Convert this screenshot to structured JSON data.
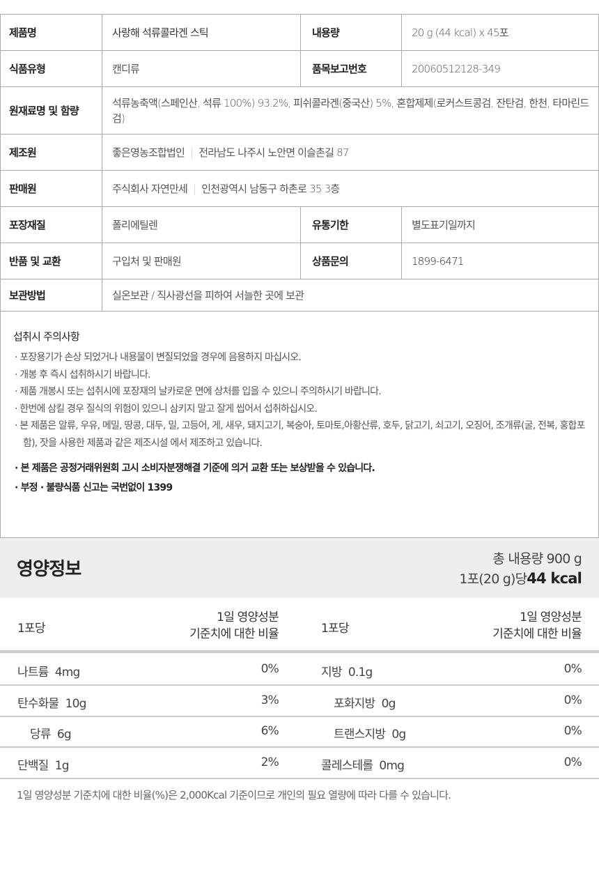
{
  "info": {
    "product_name_label": "제품명",
    "product_name": "사랑해 석류콜라겐 스틱",
    "volume_label": "내용량",
    "volume": "20 g (44 kcal) x 45포",
    "food_type_label": "식품유형",
    "food_type": "캔디류",
    "report_no_label": "품목보고번호",
    "report_no": "20060512128-349",
    "ingredients_label": "원재료명 및 함량",
    "ingredients": "석류농축액(스페인산, 석류 100%) 93.2%, 피쉬콜라겐(중국산) 5%, 혼합제제(로커스트콩검, 잔탄검, 한천, 타마린드검)",
    "maker_label": "제조원",
    "maker_name": "좋은영농조합법인",
    "maker_addr": "전라남도 나주시 노안면 이슬촌길 87",
    "seller_label": "판매원",
    "seller_name": "주식회사 자연만세",
    "seller_addr": "인천광역시 남동구 하촌로 35 3층",
    "packaging_label": "포장재질",
    "packaging": "폴리에틸렌",
    "expiry_label": "유통기한",
    "expiry": "별도표기일까지",
    "return_label": "반품 및 교환",
    "return": "구입처 및 판매원",
    "inquiry_label": "상품문의",
    "inquiry": "1899-6471",
    "storage_label": "보관방법",
    "storage": "실온보관 / 직사광선을 피하여 서늘한 곳에 보관",
    "separator": "|"
  },
  "caution": {
    "title": "섭취시 주의사항",
    "items": [
      "· 포장용기가 손상 되었거나 내용물이 변질되었을 경우에 음용하지 마십시오.",
      "· 개봉 후 즉시 섭취하시기 바랍니다.",
      "· 제품 개봉시 또는 섭취시에 포장재의 날카로운 면에 상처를 입을 수 있으니 주의하시기 바랍니다.",
      "· 한번에 삼킬 경우 질식의 위험이 있으니 삼키지 말고 잘게 씹어서 섭취하십시오.",
      "· 본 제품은 알류, 우유, 메밀, 땅콩, 대두, 밀, 고등어, 게, 새우, 돼지고기, 복숭아, 토마토,아황산류, 호두, 닭고기, 쇠고기, 오징어, 조개류(굴, 전복, 홍합포함), 잣을 사용한 제품과 같은 제조시설 에서 제조하고 있습니다."
    ],
    "notes": [
      "· 본 제품은 공정거래위원회 고시 소비자분쟁해결 기준에 의거 교환 또는 보상받을 수 있습니다.",
      "· 부정 · 불량식품 신고는 국번없이 1399"
    ]
  },
  "nutrition": {
    "title": "영양정보",
    "total": "총 내용량 900 g",
    "per_serving": "1포(20 g)당",
    "kcal": "44 kcal",
    "col_per": "1포당",
    "col_dv_1": "1일 영양성분",
    "col_dv_2": "기준치에 대한 비율",
    "left": [
      {
        "name": "나트륨  4mg",
        "dv": "0%"
      },
      {
        "name": "탄수화물  10g",
        "dv": "3%"
      },
      {
        "name": "당류  6g",
        "dv": "6%"
      },
      {
        "name": "단백질  1g",
        "dv": "2%"
      }
    ],
    "right": [
      {
        "name": "지방  0.1g",
        "dv": "0%"
      },
      {
        "name": "포화지방  0g",
        "dv": "0%"
      },
      {
        "name": "트랜스지방  0g",
        "dv": "0%"
      },
      {
        "name": "콜레스테롤  0mg",
        "dv": "0%"
      }
    ],
    "footnote": "1일 영양성분 기준치에 대한 비율(%)은 2,000Kcal 기준이므로 개인의 필요 열량에 따라 다를 수 있습니다."
  }
}
